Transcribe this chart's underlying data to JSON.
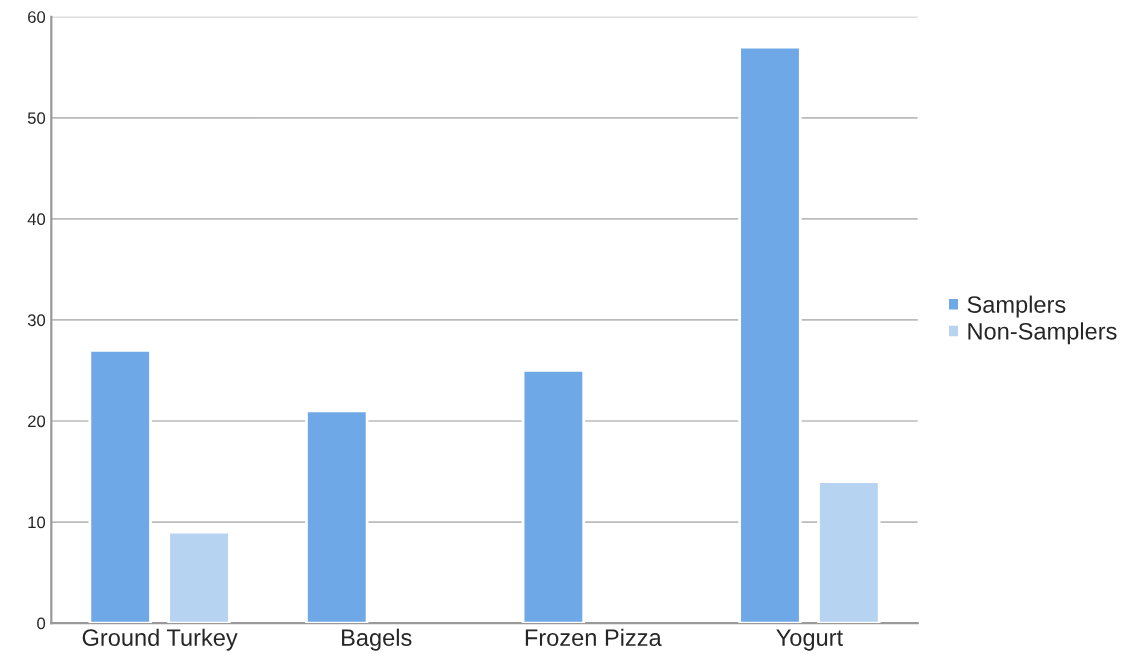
{
  "chart_data": {
    "type": "bar",
    "categories": [
      "Ground Turkey",
      "Bagels",
      "Frozen Pizza",
      "Yogurt"
    ],
    "series": [
      {
        "name": "Samplers",
        "color": "#6fa8e6",
        "values": [
          27,
          21,
          25,
          57
        ]
      },
      {
        "name": "Non-Samplers",
        "color": "#b7d3f2",
        "values": [
          9,
          null,
          null,
          14
        ]
      }
    ],
    "ylim": [
      0,
      60
    ],
    "yticks": [
      0,
      10,
      20,
      30,
      40,
      50,
      60
    ],
    "grid": "y",
    "legend": "right"
  }
}
